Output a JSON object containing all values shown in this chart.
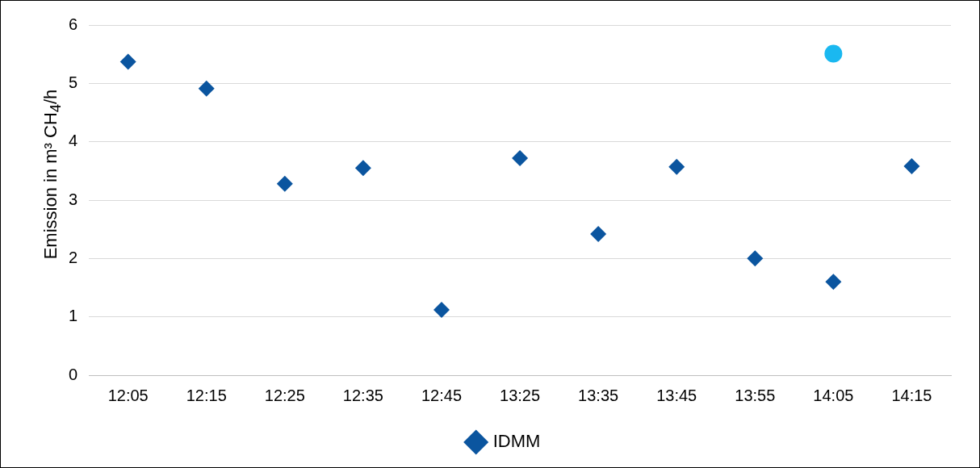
{
  "chart_data": {
    "type": "scatter",
    "ylabel": "Emission in m³ CH$_{4}$/h",
    "categories": [
      "12:05",
      "12:15",
      "12:25",
      "12:35",
      "12:45",
      "13:25",
      "13:35",
      "13:45",
      "13:55",
      "14:05",
      "14:15"
    ],
    "series": [
      {
        "name": "IDMM",
        "color": "#0b559f",
        "marker": "diamond",
        "values": [
          5.37,
          4.91,
          3.28,
          3.55,
          1.12,
          3.72,
          2.42,
          3.57,
          2.0,
          1.6,
          3.58
        ]
      },
      {
        "color": "#1ab8f0",
        "marker": "circle",
        "values": [
          null,
          null,
          null,
          null,
          null,
          null,
          null,
          null,
          null,
          5.51,
          null
        ]
      }
    ],
    "ylim": [
      0,
      6
    ],
    "yticks": [
      0,
      1,
      2,
      3,
      4,
      5,
      6
    ],
    "grid": "y",
    "legend": "bottom"
  }
}
